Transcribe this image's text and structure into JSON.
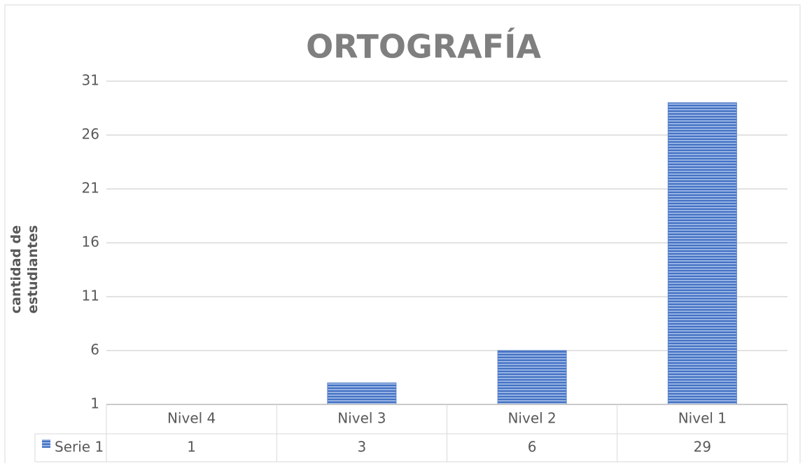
{
  "chart_data": {
    "type": "bar",
    "title": "ORTOGRAFÍA",
    "y_label": "cantidad de estudiantes",
    "categories": [
      "Nivel 4",
      "Nivel 3",
      "Nivel 2",
      "Nivel 1"
    ],
    "series": [
      {
        "name": "Serie 1",
        "color": "#4472c4",
        "values": [
          1,
          3,
          6,
          29
        ]
      }
    ],
    "ylim": [
      1,
      31
    ],
    "yticks": [
      1,
      6,
      11,
      16,
      21,
      26,
      31
    ],
    "grid": true,
    "data_table": true
  }
}
